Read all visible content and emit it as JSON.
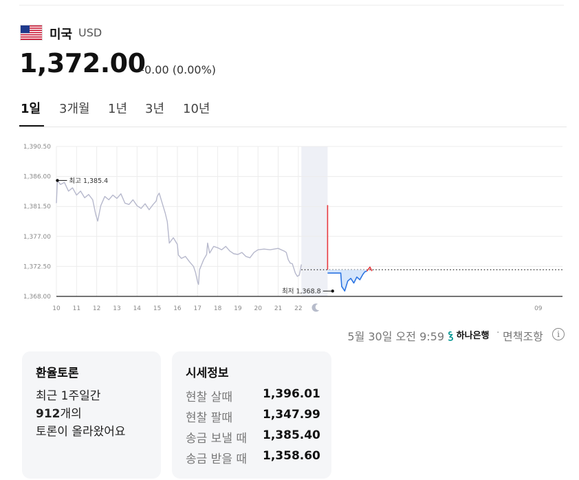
{
  "header": {
    "country": "미국",
    "currency_code": "USD",
    "price": "1,372.00",
    "change": "0.00 (0.00%)",
    "change_prefix": "–"
  },
  "tabs": [
    {
      "label": "1일",
      "active": true
    },
    {
      "label": "3개월",
      "active": false
    },
    {
      "label": "1년",
      "active": false
    },
    {
      "label": "3년",
      "active": false
    },
    {
      "label": "10년",
      "active": false
    }
  ],
  "chart_data": {
    "type": "line",
    "ylim": [
      1368.0,
      1390.5
    ],
    "y_ticks": [
      "1,390.50",
      "1,386.00",
      "1,381.50",
      "1,377.00",
      "1,372.50",
      "1,368.00"
    ],
    "y_tick_values": [
      1390.5,
      1386.0,
      1381.5,
      1377.0,
      1372.5,
      1368.0
    ],
    "x_ticks": [
      "10",
      "11",
      "12",
      "13",
      "14",
      "15",
      "16",
      "17",
      "18",
      "19",
      "20",
      "21",
      "22",
      "09"
    ],
    "x_tick_values": [
      10,
      11,
      12,
      13,
      14,
      15,
      16,
      17,
      18,
      19,
      20,
      21,
      22,
      33.9
    ],
    "xlim": [
      10,
      35.1
    ],
    "grid": true,
    "night_band": [
      22.15,
      23.45
    ],
    "moon_at": 22.9,
    "reference_value": 1372.0,
    "high": {
      "label": "최고 1,385.4",
      "value": 1385.4,
      "x": 10.05
    },
    "low": {
      "label": "최저 1,368.8",
      "value": 1368.8,
      "x": 23.7
    },
    "series": [
      {
        "role": "previous",
        "color": "#b6b8cc",
        "points": [
          [
            10.0,
            1382.0
          ],
          [
            10.05,
            1385.4
          ],
          [
            10.2,
            1384.8
          ],
          [
            10.4,
            1385.1
          ],
          [
            10.6,
            1383.8
          ],
          [
            10.8,
            1384.3
          ],
          [
            11.0,
            1383.2
          ],
          [
            11.2,
            1383.8
          ],
          [
            11.4,
            1382.8
          ],
          [
            11.6,
            1383.3
          ],
          [
            11.8,
            1382.5
          ],
          [
            11.95,
            1380.3
          ],
          [
            12.05,
            1379.3
          ],
          [
            12.2,
            1381.6
          ],
          [
            12.4,
            1383.0
          ],
          [
            12.6,
            1382.5
          ],
          [
            12.8,
            1383.2
          ],
          [
            13.0,
            1382.7
          ],
          [
            13.2,
            1383.4
          ],
          [
            13.4,
            1382.0
          ],
          [
            13.6,
            1381.8
          ],
          [
            13.8,
            1382.5
          ],
          [
            14.0,
            1381.6
          ],
          [
            14.2,
            1381.2
          ],
          [
            14.4,
            1381.9
          ],
          [
            14.6,
            1381.0
          ],
          [
            14.8,
            1381.8
          ],
          [
            14.95,
            1382.3
          ],
          [
            15.0,
            1383.0
          ],
          [
            15.1,
            1383.5
          ],
          [
            15.25,
            1382.0
          ],
          [
            15.4,
            1380.5
          ],
          [
            15.5,
            1379.2
          ],
          [
            15.6,
            1376.0
          ],
          [
            15.8,
            1376.8
          ],
          [
            16.0,
            1375.8
          ],
          [
            16.05,
            1374.2
          ],
          [
            16.2,
            1373.7
          ],
          [
            16.4,
            1374.0
          ],
          [
            16.6,
            1373.2
          ],
          [
            16.8,
            1372.5
          ],
          [
            16.9,
            1371.6
          ],
          [
            17.0,
            1370.2
          ],
          [
            17.05,
            1369.8
          ],
          [
            17.1,
            1372.0
          ],
          [
            17.3,
            1373.5
          ],
          [
            17.45,
            1374.3
          ],
          [
            17.5,
            1376.0
          ],
          [
            17.6,
            1374.5
          ],
          [
            17.8,
            1375.5
          ],
          [
            18.0,
            1375.3
          ],
          [
            18.2,
            1375.0
          ],
          [
            18.4,
            1375.5
          ],
          [
            18.6,
            1374.8
          ],
          [
            18.8,
            1374.4
          ],
          [
            19.0,
            1374.3
          ],
          [
            19.2,
            1374.6
          ],
          [
            19.4,
            1374.0
          ],
          [
            19.6,
            1373.8
          ],
          [
            19.8,
            1374.6
          ],
          [
            20.0,
            1375.0
          ],
          [
            20.3,
            1375.1
          ],
          [
            20.6,
            1375.0
          ],
          [
            21.0,
            1375.2
          ],
          [
            21.3,
            1374.8
          ],
          [
            21.4,
            1374.6
          ],
          [
            21.5,
            1373.5
          ],
          [
            21.6,
            1373.0
          ],
          [
            21.7,
            1372.9
          ],
          [
            21.85,
            1371.5
          ],
          [
            21.95,
            1371.0
          ],
          [
            22.05,
            1371.2
          ],
          [
            22.15,
            1372.8
          ]
        ]
      },
      {
        "role": "current_high",
        "color": "#e8383d",
        "points": [
          [
            23.45,
            1381.7
          ],
          [
            23.45,
            1372.0
          ]
        ]
      },
      {
        "role": "current",
        "color": "#2b74e2",
        "fill": "#d6e6fb",
        "points": [
          [
            23.45,
            1371.5
          ],
          [
            24.1,
            1371.5
          ],
          [
            24.15,
            1369.5
          ],
          [
            24.3,
            1368.8
          ],
          [
            24.45,
            1370.3
          ],
          [
            24.6,
            1370.7
          ],
          [
            24.75,
            1370.0
          ],
          [
            24.9,
            1370.9
          ],
          [
            25.05,
            1370.5
          ],
          [
            25.2,
            1371.3
          ],
          [
            25.3,
            1371.7
          ],
          [
            25.4,
            1371.8
          ]
        ]
      },
      {
        "role": "current_up",
        "color": "#e8383d",
        "points": [
          [
            25.4,
            1371.8
          ],
          [
            25.55,
            1372.4
          ],
          [
            25.65,
            1371.8
          ]
        ]
      }
    ]
  },
  "footer": {
    "timestamp": "5월 30일 오전 9:59",
    "bank_mark": "ꝣ",
    "bank_name": "하나은행",
    "separator": "·",
    "disclaimer": "면책조항",
    "info_icon": "ⓘ"
  },
  "debate_card": {
    "title": "환율토론",
    "line1": "최근 1주일간",
    "count": "912",
    "line2_suffix": "개의",
    "line3": "토론이 올라왔어요"
  },
  "quote_card": {
    "title": "시세정보",
    "rows": [
      {
        "label": "현찰 살때",
        "value": "1,396.01"
      },
      {
        "label": "현찰 팔때",
        "value": "1,347.99"
      },
      {
        "label": "송금 보낼 때",
        "value": "1,385.40"
      },
      {
        "label": "송금 받을 때",
        "value": "1,358.60"
      }
    ]
  }
}
